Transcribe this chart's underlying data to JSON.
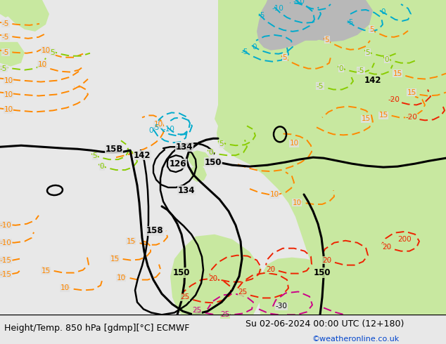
{
  "title_left": "Height/Temp. 850 hPa [gdmp][°C] ECMWF",
  "title_right": "Su 02-06-2024 00:00 UTC (12+180)",
  "watermark": "©weatheronline.co.uk",
  "ocean_color": "#e0e0e0",
  "land_green": "#c8e8a0",
  "land_gray": "#b8b8b8",
  "fig_width": 6.34,
  "fig_height": 4.9,
  "dpi": 100,
  "bar_color": "#e8e8e8",
  "title_fontsize": 9.0,
  "watermark_color": "#0044cc",
  "watermark_fontsize": 8,
  "black_lw": 2.2,
  "orange_color": "#ff8800",
  "lime_color": "#88cc00",
  "cyan_color": "#00aacc",
  "red_color": "#ee2200",
  "magenta_color": "#cc0088",
  "teal_color": "#009988"
}
